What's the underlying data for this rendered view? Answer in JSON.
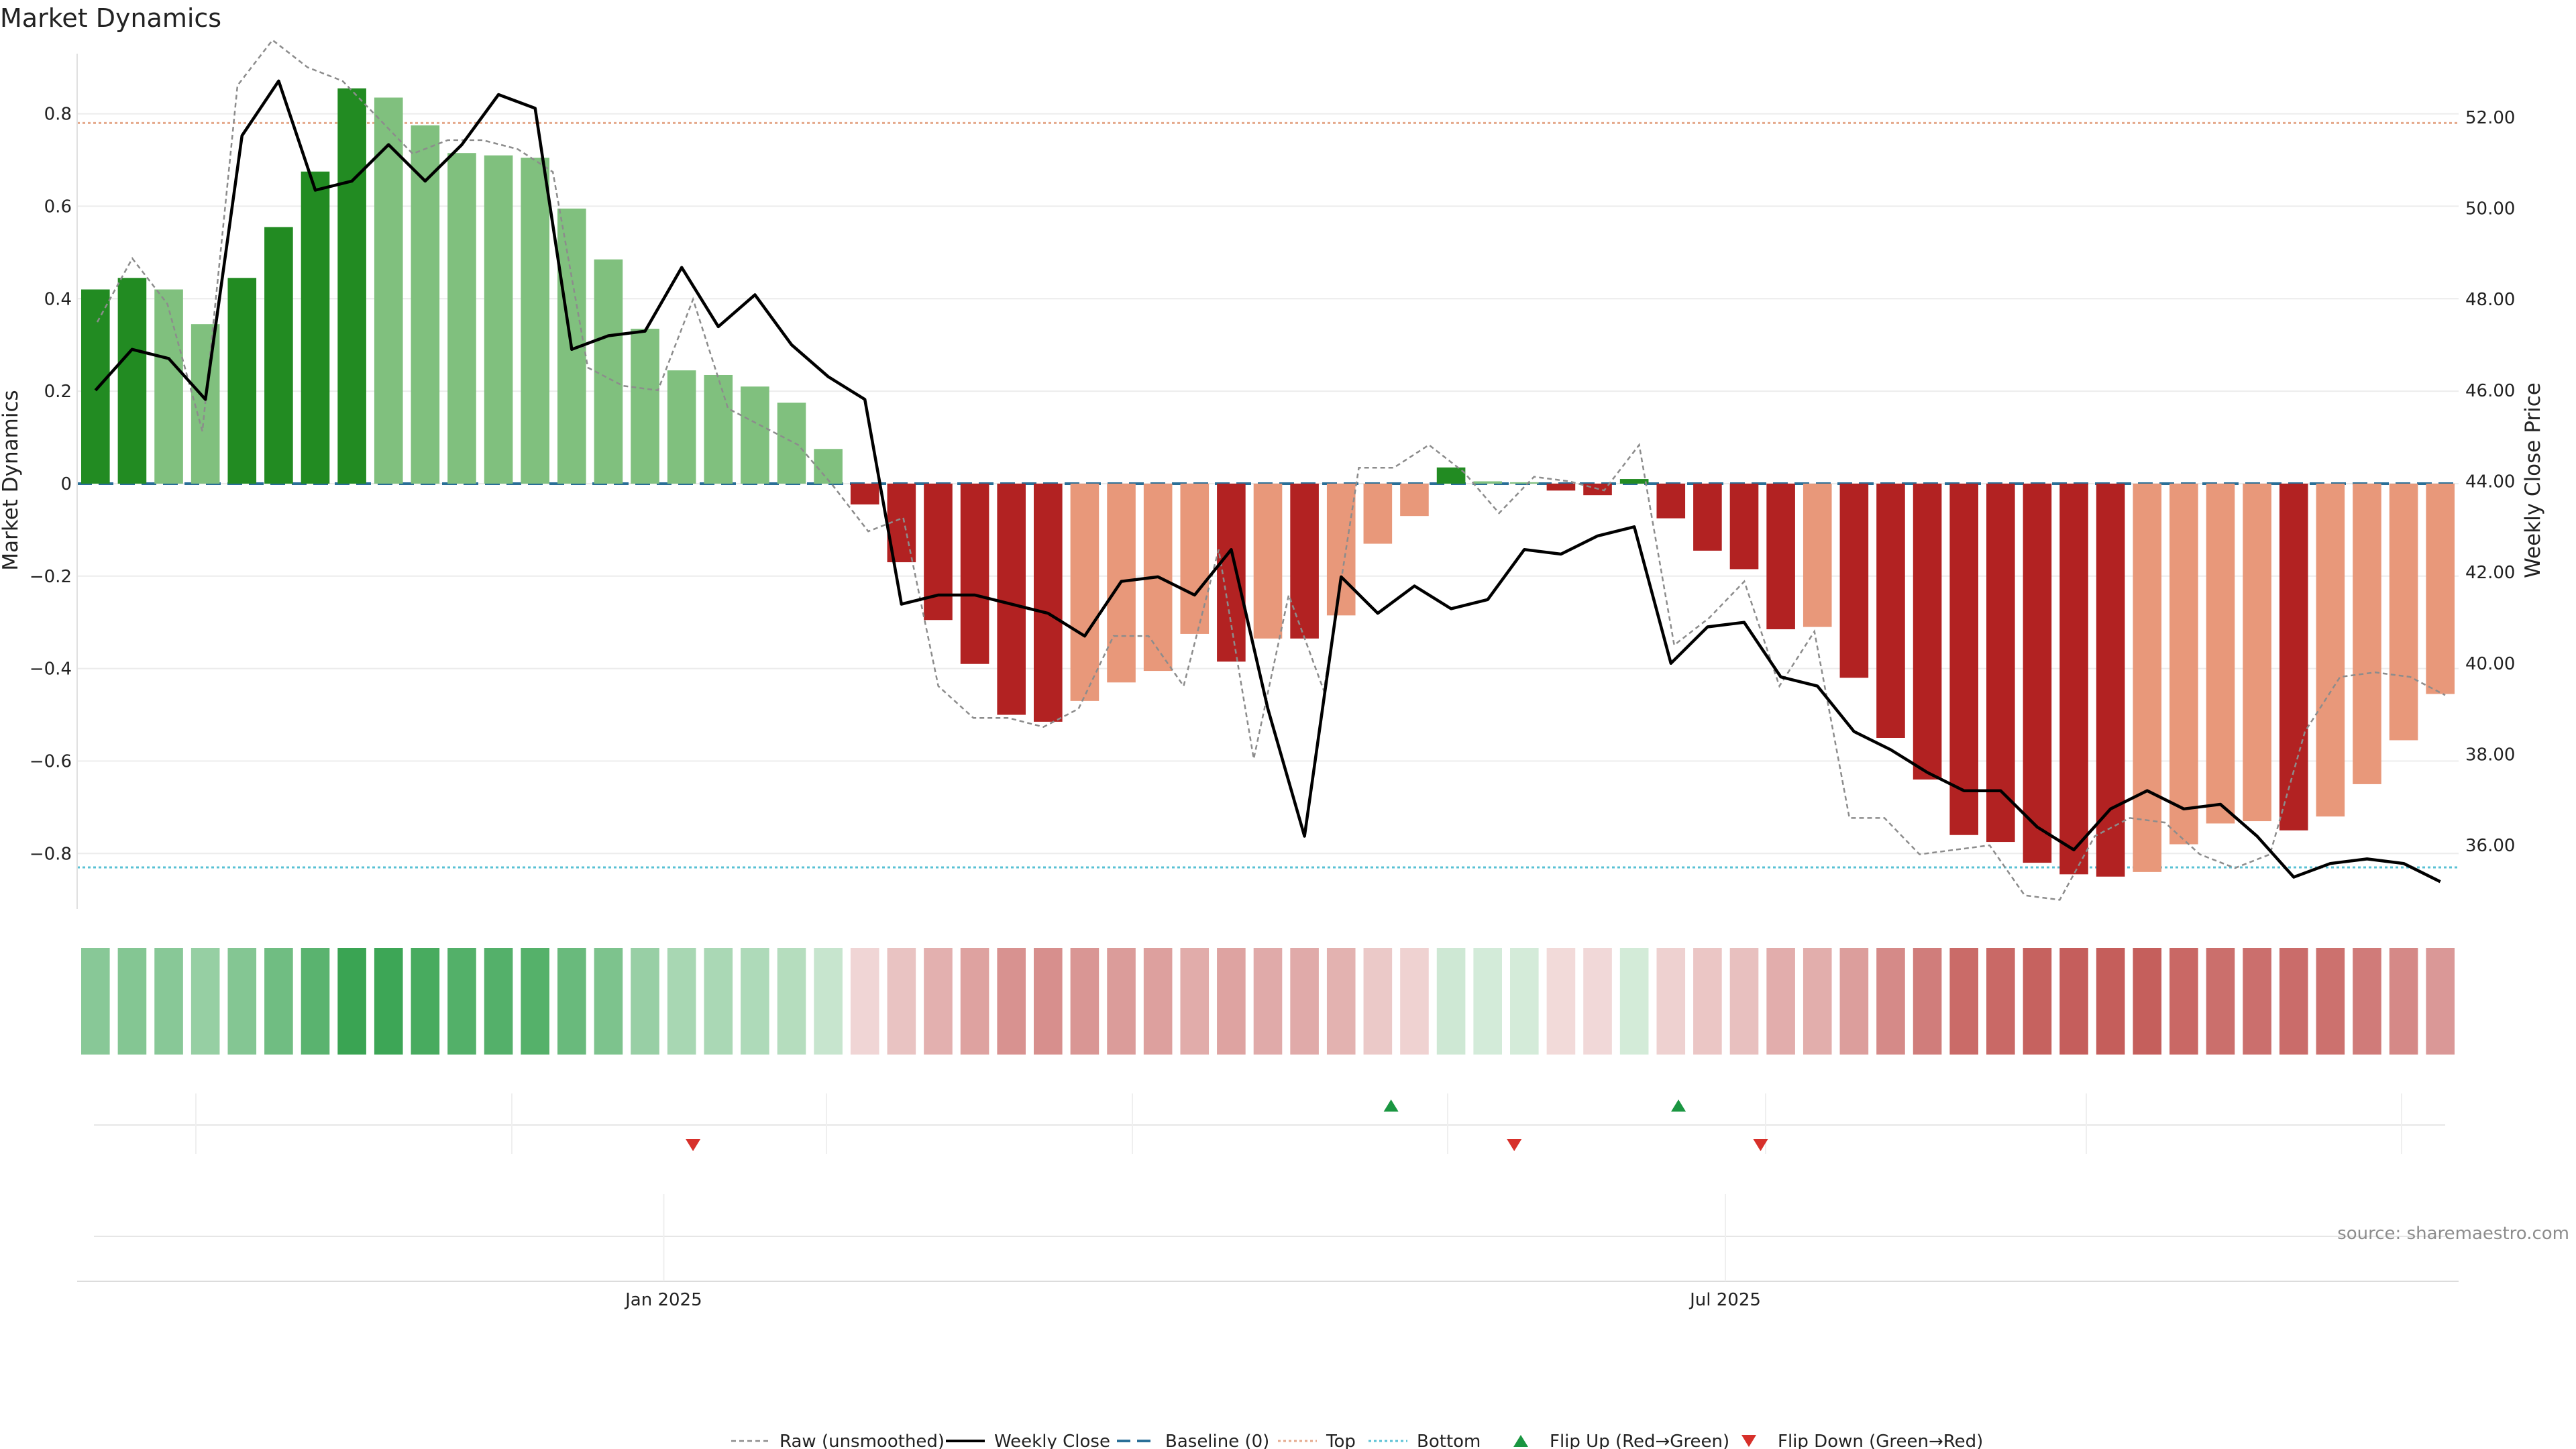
{
  "chart_data": {
    "type": "bar",
    "title": "Market Dynamics",
    "ylabel": "Market Dynamics",
    "y2label": "Weekly Close Price",
    "ylim": [
      -0.92,
      0.93
    ],
    "y2lim": [
      34.6,
      53.4
    ],
    "yticks": [
      0.8,
      0.6,
      0.4,
      0.2,
      0,
      -0.2,
      -0.4,
      -0.6,
      -0.8
    ],
    "ytick_labels": [
      "0.8",
      "0.6",
      "0.4",
      "0.2",
      "0",
      "−0.2",
      "−0.4",
      "−0.6",
      "−0.8"
    ],
    "y2ticks": [
      52,
      50,
      48,
      46,
      44,
      42,
      40,
      38,
      36
    ],
    "y2tick_labels": [
      "52.00",
      "50.00",
      "48.00",
      "46.00",
      "44.00",
      "42.00",
      "40.00",
      "38.00",
      "36.00"
    ],
    "x_start": "2024-09-23",
    "x_end": "2025-11-03",
    "xtick_labels": [
      {
        "date": "2025-01-01",
        "label": "Jan 2025"
      },
      {
        "date": "2025-07-01",
        "label": "Jul 2025"
      }
    ],
    "top_level": 0.78,
    "bottom_level": -0.83,
    "baseline": 0,
    "momentum": [
      0.42,
      0.445,
      0.42,
      0.345,
      0.445,
      0.555,
      0.675,
      0.855,
      0.835,
      0.775,
      0.715,
      0.71,
      0.705,
      0.595,
      0.485,
      0.335,
      0.245,
      0.235,
      0.21,
      0.175,
      0.075,
      -0.045,
      -0.17,
      -0.295,
      -0.39,
      -0.5,
      -0.515,
      -0.47,
      -0.43,
      -0.405,
      -0.325,
      -0.385,
      -0.335,
      -0.335,
      -0.285,
      -0.13,
      -0.07,
      0.035,
      0.005,
      0.003,
      -0.015,
      -0.025,
      0.01,
      -0.075,
      -0.145,
      -0.185,
      -0.315,
      -0.31,
      -0.42,
      -0.55,
      -0.64,
      -0.76,
      -0.775,
      -0.82,
      -0.845,
      -0.85,
      -0.84,
      -0.78,
      -0.735,
      -0.73,
      -0.75,
      -0.72,
      -0.65,
      -0.555,
      -0.455
    ],
    "raw_close": [
      47.5,
      48.9,
      47.9,
      45.1,
      52.7,
      53.7,
      53.1,
      52.8,
      52.0,
      51.2,
      51.5,
      51.5,
      51.3,
      50.8,
      46.5,
      46.1,
      46.0,
      48.0,
      45.6,
      45.2,
      44.8,
      43.9,
      42.9,
      43.2,
      39.5,
      38.8,
      38.8,
      38.6,
      39.0,
      40.6,
      40.6,
      39.5,
      42.5,
      37.9,
      41.5,
      39.4,
      44.3,
      44.3,
      44.8,
      44.2,
      43.3,
      44.1,
      44.0,
      43.8,
      44.8,
      40.4,
      41.0,
      41.8,
      39.5,
      40.7,
      36.6,
      36.6,
      35.8,
      35.9,
      36.0,
      34.9,
      34.8,
      36.2,
      36.6,
      36.5,
      35.8,
      35.5,
      35.8,
      38.5,
      39.7,
      39.8,
      39.7,
      39.3
    ],
    "close": [
      46.0,
      46.9,
      46.7,
      45.8,
      51.6,
      52.8,
      50.4,
      50.6,
      51.4,
      50.6,
      51.4,
      52.5,
      52.2,
      46.9,
      47.2,
      47.3,
      48.7,
      47.4,
      48.1,
      47.0,
      46.3,
      45.8,
      41.3,
      41.5,
      41.5,
      41.3,
      41.1,
      40.6,
      41.8,
      41.9,
      41.5,
      42.5,
      39.0,
      36.2,
      41.9,
      41.1,
      41.7,
      41.2,
      41.4,
      42.5,
      42.4,
      42.8,
      43.0,
      40.0,
      40.8,
      40.9,
      39.7,
      39.5,
      38.5,
      38.1,
      37.6,
      37.2,
      37.2,
      36.4,
      35.9,
      36.8,
      37.2,
      36.8,
      36.9,
      36.2,
      35.3,
      35.6,
      35.7,
      35.6,
      35.2
    ],
    "flips_up": [
      "2025-05-05",
      "2025-06-23"
    ],
    "flips_down": [
      "2025-01-06",
      "2025-05-26",
      "2025-07-07"
    ],
    "legend": [
      "Raw (unsmoothed)",
      "Weekly Close",
      "Baseline (0)",
      "Top",
      "Bottom",
      "Flip Up (Red→Green)",
      "Flip Down (Green→Red)"
    ],
    "colors": {
      "strong_green": "#228b22",
      "light_green": "#80c07e",
      "strong_red": "#b22222",
      "light_red": "#e8987a",
      "close_line": "#000000",
      "raw_line": "#8c8c8c",
      "baseline": "#2a6f97",
      "top": "#e5a98c",
      "bottom": "#59c1d4",
      "flip_up": "#1a9641",
      "flip_down": "#d7302a",
      "grid": "#ececec"
    }
  },
  "source": "source: sharemaestro.com"
}
